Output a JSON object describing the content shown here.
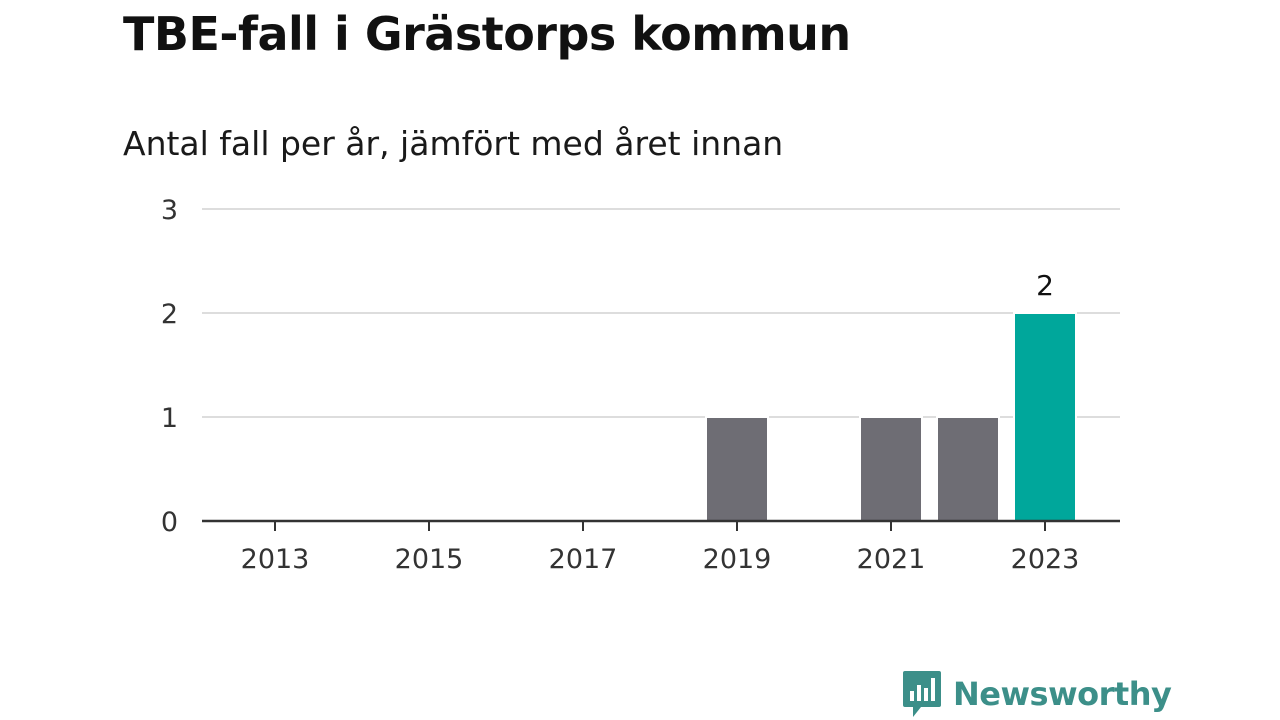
{
  "header": {
    "title": "TBE-fall i Grästorps kommun",
    "subtitle": "Antal fall per år, jämfört med året innan"
  },
  "brand": {
    "name": "Newsworthy",
    "color": "#3c8f89",
    "logo_icon": "bar-chart-speech-bubble-icon"
  },
  "chart_data": {
    "type": "bar",
    "categories": [
      "2013",
      "2014",
      "2015",
      "2016",
      "2017",
      "2018",
      "2019",
      "2020",
      "2021",
      "2022",
      "2023"
    ],
    "values": [
      0,
      0,
      0,
      0,
      0,
      0,
      1,
      0,
      1,
      1,
      2
    ],
    "tick_labels": [
      "2013",
      "2015",
      "2017",
      "2019",
      "2021",
      "2023"
    ],
    "y_ticks": [
      0,
      1,
      2,
      3
    ],
    "ylim": [
      0,
      3
    ],
    "xlabel": "",
    "ylabel": "",
    "grid": true,
    "legend": "none",
    "highlight_category": "2023",
    "value_labels": [
      {
        "category": "2023",
        "text": "2"
      }
    ],
    "colors": {
      "bar": "#6e6d74",
      "highlight": "#00a79b",
      "grid": "#dddddd",
      "axis": "#333333",
      "tick_text": "#333333"
    }
  }
}
